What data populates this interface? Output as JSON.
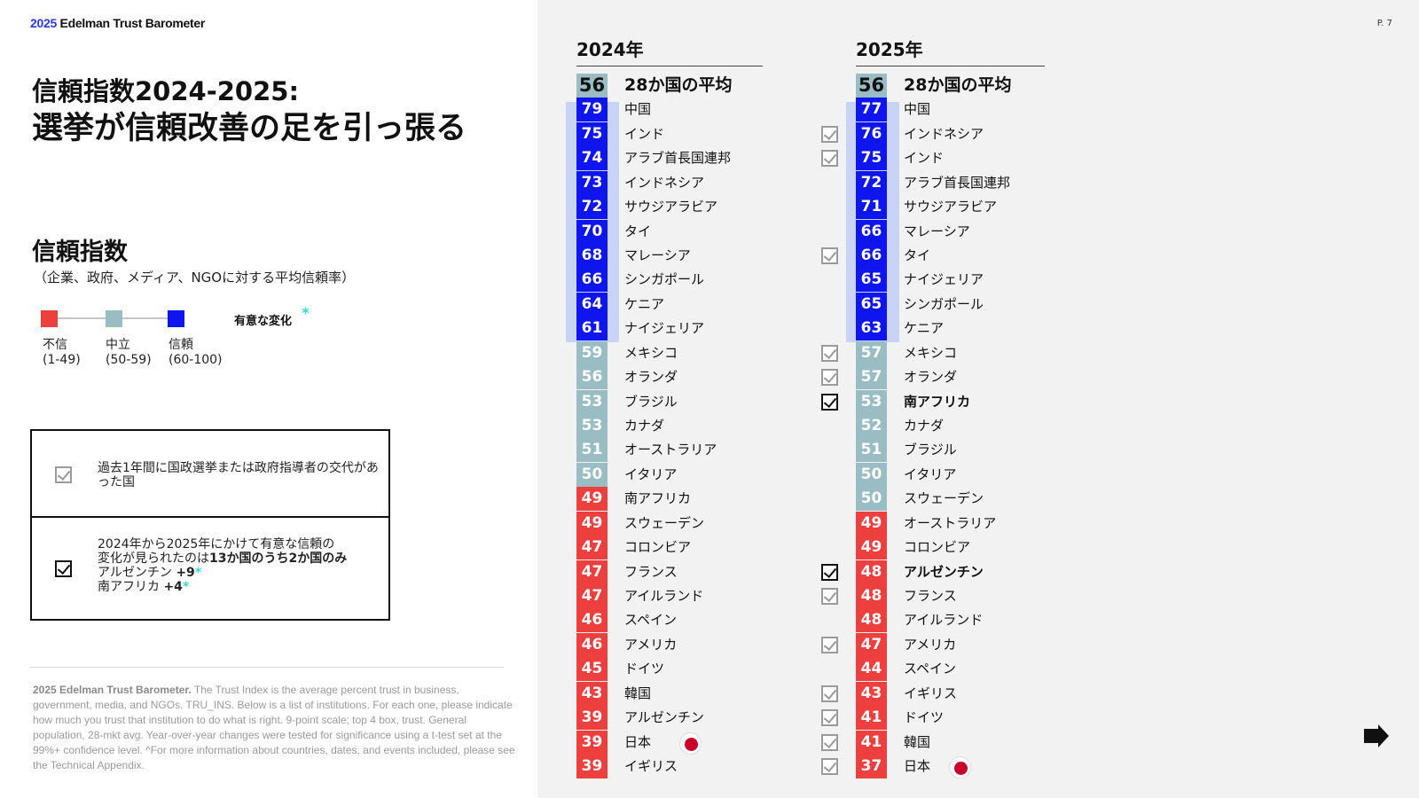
{
  "header": {
    "brand_year": "2025",
    "brand_name": "Edelman Trust Barometer",
    "page_number": "P. 7"
  },
  "title": {
    "line1": "信頼指数2024-2025:",
    "line2": "選挙が信頼改善の足を引っ張る"
  },
  "trust_index": {
    "heading": "信頼指数",
    "subheading": "（企業、政府、メディア、NGOに対する平均信頼率）",
    "legend": [
      {
        "label": "不信",
        "range": "(1-49)",
        "color": "#ee3f3f"
      },
      {
        "label": "中立",
        "range": "(50-59)",
        "color": "#99bdc3"
      },
      {
        "label": "信頼",
        "range": "(60-100)",
        "color": "#0e15ee"
      }
    ],
    "significant_label": "有意な変化",
    "significant_star": "*"
  },
  "notes": {
    "election_note": "過去1年間に国政選挙または政府指導者の交代があった国",
    "sig_note_line1": "2024年から2025年にかけて有意な信頼の",
    "sig_note_line2_pre": "変化が見られたのは",
    "sig_note_line2_bold": "13か国のうち2か国のみ",
    "sig_item1_name": "アルゼンチン",
    "sig_item1_value": "+9",
    "sig_item2_name": "南アフリカ",
    "sig_item2_value": "+4",
    "star": "*"
  },
  "footnote": {
    "bold": "2025 Edelman Trust Barometer.",
    "text": "The Trust Index is the average percent trust in business, government, media, and NGOs. TRU_INS. Below is a list of institutions. For each one, please indicate how much you trust that institution to do what is right. 9-point scale; top 4 box, trust. General population, 28-mkt avg. Year-over-year changes were tested for significance using a t-test set at the 99%+ confidence level. ^For more information about countries, dates, and events included, please see the Technical Appendix."
  },
  "colors": {
    "distrust": "#ee3f3f",
    "neutral": "#99bdc3",
    "trust": "#0e15ee",
    "brand_blue": "#2b3ad6",
    "significant": "#3dd6cf",
    "highlight": "#c9d3f5"
  },
  "chart_data": {
    "type": "table",
    "columns": [
      {
        "year": "2024年",
        "rows": [
          {
            "score": 56,
            "name": "28か国の平均",
            "avg": true
          },
          {
            "score": 79,
            "name": "中国"
          },
          {
            "score": 75,
            "name": "インド"
          },
          {
            "score": 74,
            "name": "アラブ首長国連邦"
          },
          {
            "score": 73,
            "name": "インドネシア"
          },
          {
            "score": 72,
            "name": "サウジアラビア"
          },
          {
            "score": 70,
            "name": "タイ"
          },
          {
            "score": 68,
            "name": "マレーシア"
          },
          {
            "score": 66,
            "name": "シンガポール"
          },
          {
            "score": 64,
            "name": "ケニア"
          },
          {
            "score": 61,
            "name": "ナイジェリア"
          },
          {
            "score": 59,
            "name": "メキシコ"
          },
          {
            "score": 56,
            "name": "オランダ"
          },
          {
            "score": 53,
            "name": "ブラジル"
          },
          {
            "score": 53,
            "name": "カナダ"
          },
          {
            "score": 51,
            "name": "オーストラリア"
          },
          {
            "score": 50,
            "name": "イタリア"
          },
          {
            "score": 49,
            "name": "南アフリカ"
          },
          {
            "score": 49,
            "name": "スウェーデン"
          },
          {
            "score": 47,
            "name": "コロンビア"
          },
          {
            "score": 47,
            "name": "フランス"
          },
          {
            "score": 47,
            "name": "アイルランド"
          },
          {
            "score": 46,
            "name": "スペイン"
          },
          {
            "score": 46,
            "name": "アメリカ"
          },
          {
            "score": 45,
            "name": "ドイツ"
          },
          {
            "score": 43,
            "name": "韓国"
          },
          {
            "score": 39,
            "name": "アルゼンチン"
          },
          {
            "score": 39,
            "name": "日本",
            "flag": "japan-flag"
          },
          {
            "score": 39,
            "name": "イギリス"
          }
        ]
      },
      {
        "year": "2025年",
        "rows": [
          {
            "score": 56,
            "name": "28か国の平均",
            "avg": true
          },
          {
            "score": 77,
            "name": "中国"
          },
          {
            "score": 76,
            "name": "インドネシア",
            "check": "election"
          },
          {
            "score": 75,
            "name": "インド",
            "check": "election"
          },
          {
            "score": 72,
            "name": "アラブ首長国連邦"
          },
          {
            "score": 71,
            "name": "サウジアラビア"
          },
          {
            "score": 66,
            "name": "マレーシア"
          },
          {
            "score": 66,
            "name": "タイ",
            "check": "election"
          },
          {
            "score": 65,
            "name": "ナイジェリア"
          },
          {
            "score": 65,
            "name": "シンガポール"
          },
          {
            "score": 63,
            "name": "ケニア"
          },
          {
            "score": 57,
            "name": "メキシコ",
            "check": "election"
          },
          {
            "score": 57,
            "name": "オランダ",
            "check": "election"
          },
          {
            "score": 53,
            "name": "南アフリカ",
            "check": "significant",
            "bold": true
          },
          {
            "score": 52,
            "name": "カナダ"
          },
          {
            "score": 51,
            "name": "ブラジル"
          },
          {
            "score": 50,
            "name": "イタリア"
          },
          {
            "score": 50,
            "name": "スウェーデン"
          },
          {
            "score": 49,
            "name": "オーストラリア"
          },
          {
            "score": 49,
            "name": "コロンビア"
          },
          {
            "score": 48,
            "name": "アルゼンチン",
            "check": "significant",
            "bold": true
          },
          {
            "score": 48,
            "name": "フランス",
            "check": "election"
          },
          {
            "score": 48,
            "name": "アイルランド"
          },
          {
            "score": 47,
            "name": "アメリカ",
            "check": "election"
          },
          {
            "score": 44,
            "name": "スペイン"
          },
          {
            "score": 43,
            "name": "イギリス",
            "check": "election"
          },
          {
            "score": 41,
            "name": "ドイツ",
            "check": "election"
          },
          {
            "score": 41,
            "name": "韓国",
            "check": "election"
          },
          {
            "score": 37,
            "name": "日本",
            "check": "election",
            "flag": "japan-flag"
          }
        ]
      }
    ]
  }
}
